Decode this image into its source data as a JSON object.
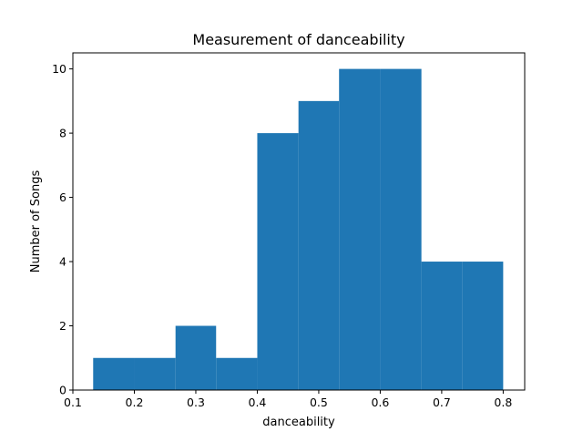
{
  "chart_data": {
    "type": "bar",
    "title": "Measurement of danceability",
    "xlabel": "danceability",
    "ylabel": "Number of Songs",
    "bar_color": "#1f77b4",
    "bin_edges": [
      0.133,
      0.2,
      0.267,
      0.333,
      0.4,
      0.467,
      0.533,
      0.6,
      0.667,
      0.733,
      0.8
    ],
    "values": [
      1,
      1,
      2,
      1,
      8,
      9,
      10,
      10,
      4,
      4
    ],
    "xlim": [
      0.1,
      0.835
    ],
    "ylim": [
      0,
      10.5
    ],
    "xticks": [
      0.1,
      0.2,
      0.3,
      0.4,
      0.5,
      0.6,
      0.7,
      0.8
    ],
    "xtick_labels": [
      "0.1",
      "0.2",
      "0.3",
      "0.4",
      "0.5",
      "0.6",
      "0.7",
      "0.8"
    ],
    "yticks": [
      0,
      2,
      4,
      6,
      8,
      10
    ],
    "ytick_labels": [
      "0",
      "2",
      "4",
      "6",
      "8",
      "10"
    ],
    "grid": false,
    "legend": "none"
  }
}
